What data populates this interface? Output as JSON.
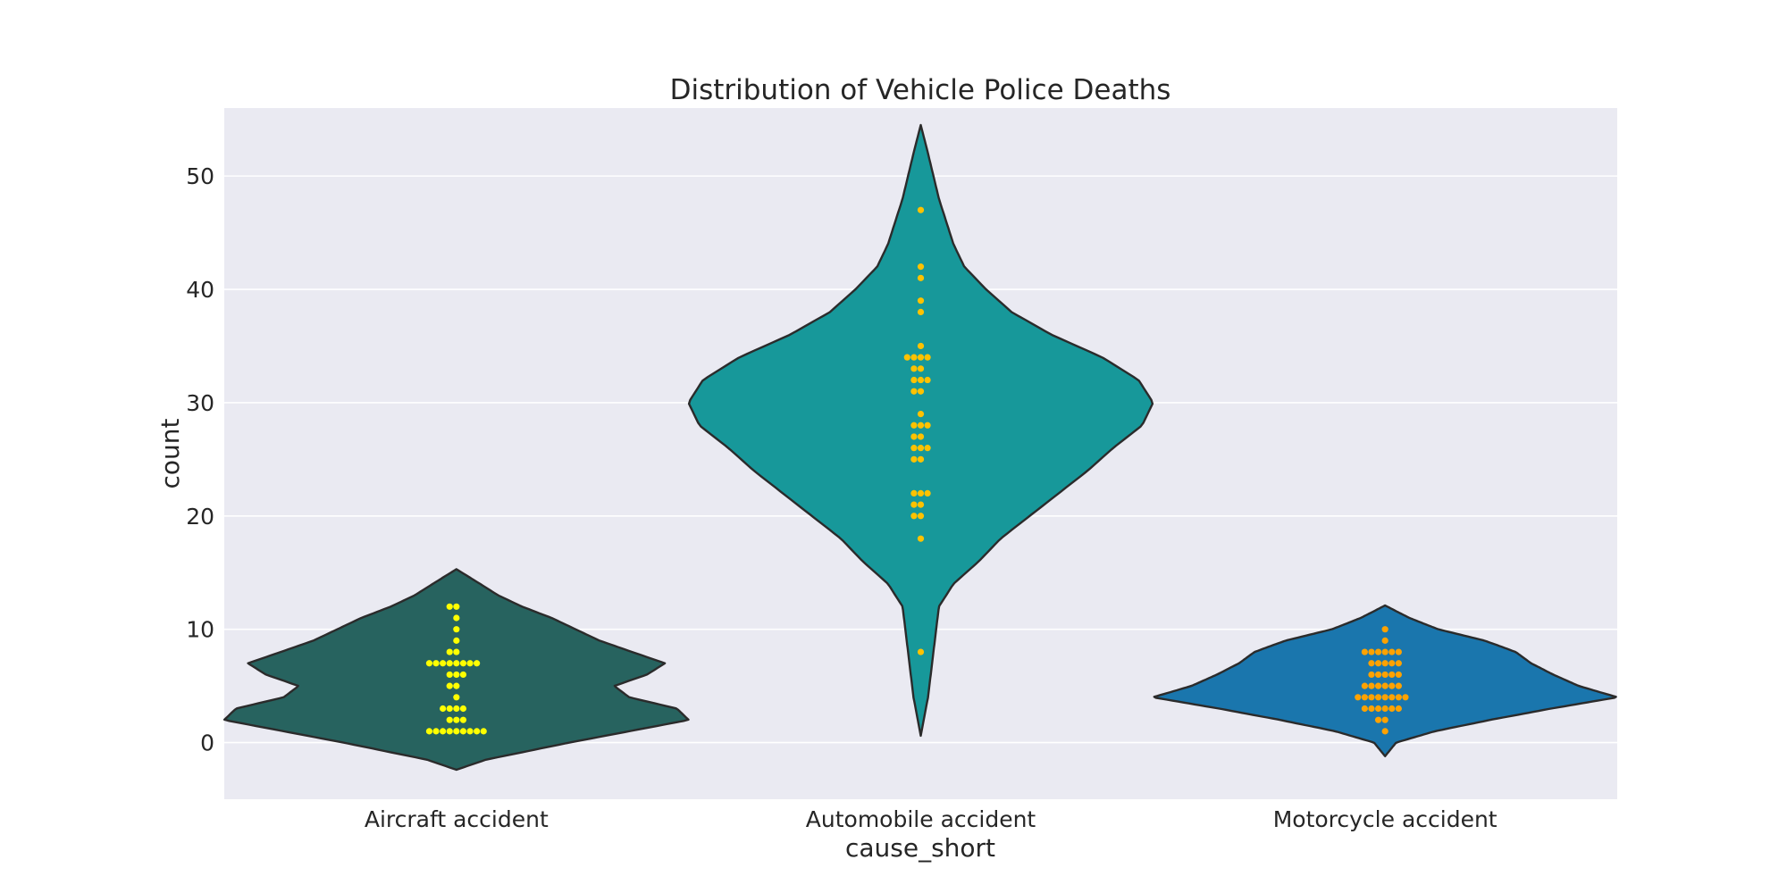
{
  "chart_data": {
    "type": "violin",
    "title": "Distribution of Vehicle Police Deaths",
    "xlabel": "cause_short",
    "ylabel": "count",
    "ylim": [
      -5,
      56
    ],
    "yticks": [
      0,
      10,
      20,
      30,
      40,
      50
    ],
    "grid": true,
    "legend": "none",
    "background_color": "#eaeaf2",
    "categories": [
      "Aircraft accident",
      "Automobile accident",
      "Motorcycle accident"
    ],
    "violins": [
      {
        "category": "Aircraft accident",
        "color": "#27635f",
        "point_color": "#ffff00",
        "range": [
          -2.4,
          15.3
        ],
        "density": [
          [
            -2.4,
            0
          ],
          [
            -1.5,
            10
          ],
          [
            0,
            38
          ],
          [
            1,
            58
          ],
          [
            2,
            78
          ],
          [
            3,
            74
          ],
          [
            4,
            58
          ],
          [
            5,
            53
          ],
          [
            6,
            64
          ],
          [
            7,
            70
          ],
          [
            8,
            59
          ],
          [
            9,
            48
          ],
          [
            10,
            40
          ],
          [
            11,
            32
          ],
          [
            12,
            22
          ],
          [
            13,
            14
          ],
          [
            14,
            8
          ],
          [
            15.3,
            0
          ]
        ],
        "points": [
          1,
          1,
          1,
          1,
          1,
          1,
          1,
          1,
          1,
          2,
          2,
          2,
          3,
          3,
          3,
          3,
          4,
          5,
          5,
          6,
          6,
          6,
          7,
          7,
          7,
          7,
          7,
          7,
          7,
          7,
          8,
          8,
          9,
          10,
          11,
          12,
          12
        ]
      },
      {
        "category": "Automobile accident",
        "color": "#17989a",
        "point_color": "#ffc200",
        "range": [
          0.6,
          54.5
        ],
        "density": [
          [
            0.6,
            0
          ],
          [
            4,
            2
          ],
          [
            8,
            3.5
          ],
          [
            12,
            5
          ],
          [
            14,
            9
          ],
          [
            16,
            16
          ],
          [
            18,
            22
          ],
          [
            20,
            30
          ],
          [
            22,
            38
          ],
          [
            24,
            46
          ],
          [
            26,
            53
          ],
          [
            28,
            61
          ],
          [
            30,
            64
          ],
          [
            32,
            60
          ],
          [
            34,
            50
          ],
          [
            36,
            36
          ],
          [
            38,
            25
          ],
          [
            40,
            18
          ],
          [
            42,
            12
          ],
          [
            44,
            9
          ],
          [
            46,
            7
          ],
          [
            48,
            5
          ],
          [
            50,
            3.5
          ],
          [
            52,
            2
          ],
          [
            54.5,
            0
          ]
        ],
        "points": [
          8,
          18,
          20,
          20,
          21,
          21,
          22,
          22,
          22,
          25,
          25,
          26,
          26,
          26,
          27,
          27,
          28,
          28,
          28,
          29,
          31,
          31,
          32,
          32,
          32,
          33,
          33,
          34,
          34,
          34,
          34,
          35,
          38,
          39,
          41,
          42,
          47
        ]
      },
      {
        "category": "Motorcycle accident",
        "color": "#1a76ad",
        "point_color": "#ffa200",
        "range": [
          -1.2,
          12.1
        ],
        "density": [
          [
            -1.2,
            0
          ],
          [
            0,
            10
          ],
          [
            1,
            45
          ],
          [
            2,
            95
          ],
          [
            3,
            150
          ],
          [
            4,
            210
          ],
          [
            5,
            175
          ],
          [
            6,
            152
          ],
          [
            7,
            132
          ],
          [
            8,
            118
          ],
          [
            9,
            90
          ],
          [
            10,
            48
          ],
          [
            11,
            22
          ],
          [
            12.1,
            0
          ]
        ],
        "points": [
          1,
          2,
          2,
          3,
          3,
          3,
          3,
          3,
          3,
          4,
          4,
          4,
          4,
          4,
          4,
          4,
          4,
          5,
          5,
          5,
          5,
          5,
          5,
          6,
          6,
          6,
          6,
          6,
          7,
          7,
          7,
          7,
          7,
          8,
          8,
          8,
          8,
          8,
          8,
          9,
          10
        ]
      }
    ]
  }
}
